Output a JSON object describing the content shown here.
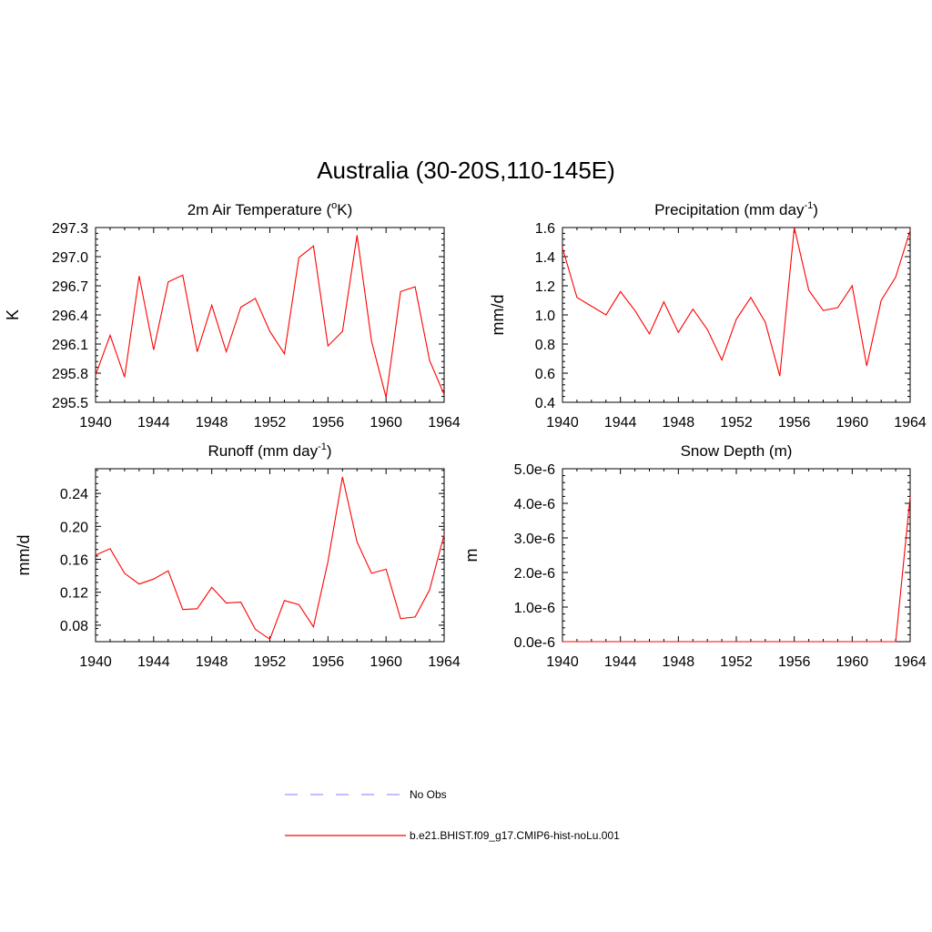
{
  "title": "Australia (30-20S,110-145E)",
  "series_color": "#ff0000",
  "obs_color": "#9999ff",
  "legend": {
    "obs_label": "No Obs",
    "model_label": "b.e21.BHIST.f09_g17.CMIP6-hist-noLu.001"
  },
  "chart_data": [
    {
      "type": "line",
      "title": "2m Air Temperature (°K)",
      "title_parts": {
        "before": "2m Air Temperature (",
        "sup": "o",
        "after": "K)"
      },
      "ylabel": "K",
      "xlim": [
        1940,
        1964
      ],
      "ylim": [
        295.5,
        297.3
      ],
      "xticks": [
        "1940",
        "1944",
        "1948",
        "1952",
        "1956",
        "1960",
        "1964"
      ],
      "yticks": [
        "295.5",
        "295.8",
        "296.1",
        "296.4",
        "296.7",
        "297.0",
        "297.3"
      ],
      "series": [
        {
          "x": [
            1940,
            1941,
            1942,
            1943,
            1944,
            1945,
            1946,
            1947,
            1948,
            1949,
            1950,
            1951,
            1952,
            1953,
            1954,
            1955,
            1956,
            1957,
            1958,
            1959,
            1960,
            1961,
            1962,
            1963,
            1964
          ],
          "values": [
            295.78,
            296.19,
            295.76,
            296.8,
            296.04,
            296.74,
            296.81,
            296.02,
            296.5,
            296.02,
            296.48,
            296.57,
            296.23,
            296.0,
            296.99,
            297.11,
            296.08,
            296.23,
            297.22,
            296.13,
            295.55,
            296.64,
            296.69,
            295.93,
            295.58
          ]
        }
      ]
    },
    {
      "type": "line",
      "title": "Precipitation (mm day-1)",
      "title_parts": {
        "before": "Precipitation (mm day",
        "sup": "-1",
        "after": ")"
      },
      "ylabel": "mm/d",
      "xlim": [
        1940,
        1964
      ],
      "ylim": [
        0.4,
        1.6
      ],
      "xticks": [
        "1940",
        "1944",
        "1948",
        "1952",
        "1956",
        "1960",
        "1964"
      ],
      "yticks": [
        "0.4",
        "0.6",
        "0.8",
        "1.0",
        "1.2",
        "1.4",
        "1.6"
      ],
      "series": [
        {
          "x": [
            1940,
            1941,
            1942,
            1943,
            1944,
            1945,
            1946,
            1947,
            1948,
            1949,
            1950,
            1951,
            1952,
            1953,
            1954,
            1955,
            1956,
            1957,
            1958,
            1959,
            1960,
            1961,
            1962,
            1963,
            1964
          ],
          "values": [
            1.46,
            1.12,
            1.06,
            1.0,
            1.16,
            1.03,
            0.87,
            1.09,
            0.88,
            1.04,
            0.9,
            0.69,
            0.97,
            1.12,
            0.95,
            0.58,
            1.6,
            1.17,
            1.03,
            1.05,
            1.2,
            0.65,
            1.1,
            1.26,
            1.58
          ]
        }
      ]
    },
    {
      "type": "line",
      "title": "Runoff (mm day-1)",
      "title_parts": {
        "before": "Runoff (mm day",
        "sup": "-1",
        "after": ")"
      },
      "ylabel": "mm/d",
      "xlim": [
        1940,
        1964
      ],
      "ylim": [
        0.06,
        0.27
      ],
      "xticks": [
        "1940",
        "1944",
        "1948",
        "1952",
        "1956",
        "1960",
        "1964"
      ],
      "yticks": [
        "0.08",
        "0.12",
        "0.16",
        "0.20",
        "0.24"
      ],
      "series": [
        {
          "x": [
            1940,
            1941,
            1942,
            1943,
            1944,
            1945,
            1946,
            1947,
            1948,
            1949,
            1950,
            1951,
            1952,
            1953,
            1954,
            1955,
            1956,
            1957,
            1958,
            1959,
            1960,
            1961,
            1962,
            1963,
            1964
          ],
          "values": [
            0.165,
            0.173,
            0.143,
            0.13,
            0.136,
            0.146,
            0.099,
            0.1,
            0.126,
            0.107,
            0.108,
            0.075,
            0.063,
            0.11,
            0.105,
            0.078,
            0.157,
            0.26,
            0.181,
            0.143,
            0.148,
            0.088,
            0.09,
            0.123,
            0.19
          ]
        }
      ]
    },
    {
      "type": "line",
      "title": "Snow Depth (m)",
      "title_parts": {
        "before": "Snow Depth (m)",
        "sup": "",
        "after": ""
      },
      "ylabel": "m",
      "xlim": [
        1940,
        1964
      ],
      "ylim": [
        0,
        5e-06
      ],
      "xticks": [
        "1940",
        "1944",
        "1948",
        "1952",
        "1956",
        "1960",
        "1964"
      ],
      "yticks": [
        "0.0e-6",
        "1.0e-6",
        "2.0e-6",
        "3.0e-6",
        "4.0e-6",
        "5.0e-6"
      ],
      "series": [
        {
          "x": [
            1940,
            1941,
            1942,
            1943,
            1944,
            1945,
            1946,
            1947,
            1948,
            1949,
            1950,
            1951,
            1952,
            1953,
            1954,
            1955,
            1956,
            1957,
            1958,
            1959,
            1960,
            1961,
            1962,
            1963,
            1964
          ],
          "values": [
            0,
            0,
            0,
            0,
            0,
            0,
            0,
            0,
            0,
            0,
            0,
            0,
            0,
            0,
            0,
            0,
            0,
            0,
            0,
            0,
            0,
            0,
            0,
            0,
            4.2e-06
          ]
        }
      ]
    }
  ]
}
